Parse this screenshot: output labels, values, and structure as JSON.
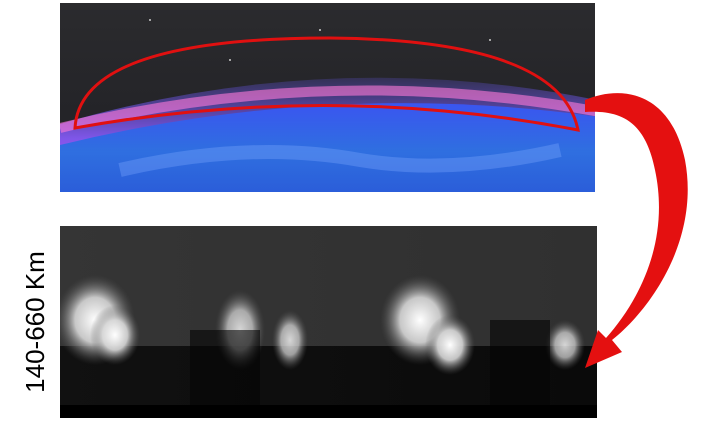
{
  "figure": {
    "side_label": "140-660 Km"
  }
}
